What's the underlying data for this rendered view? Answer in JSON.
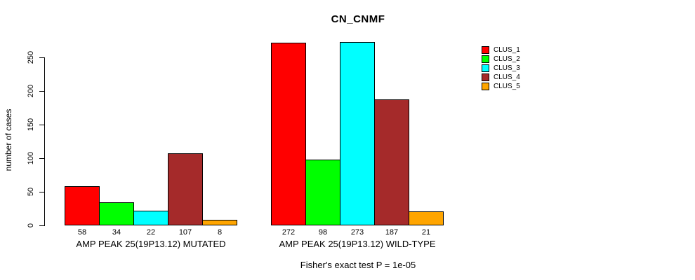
{
  "figure": {
    "title": "CN_CNMF",
    "ylabel": "number of cases",
    "subtitle": "Fisher's exact test P = 1e-05"
  },
  "chart_data": {
    "type": "bar",
    "title": "CN_CNMF",
    "xlabel": "",
    "ylabel": "number of cases",
    "ylim": [
      0,
      275
    ],
    "yticks": [
      0,
      50,
      100,
      150,
      200,
      250
    ],
    "grid": false,
    "legend_position": "top-right",
    "bar_value_labels": true,
    "categories": [
      "AMP PEAK 25(19P13.12) MUTATED",
      "AMP PEAK 25(19P13.12) WILD-TYPE"
    ],
    "series": [
      {
        "name": "CLUS_1",
        "color": "#FF0000",
        "values": [
          58,
          272
        ]
      },
      {
        "name": "CLUS_2",
        "color": "#00FF00",
        "values": [
          34,
          98
        ]
      },
      {
        "name": "CLUS_3",
        "color": "#00FFFF",
        "values": [
          22,
          273
        ]
      },
      {
        "name": "CLUS_4",
        "color": "#A52A2A",
        "values": [
          107,
          187
        ]
      },
      {
        "name": "CLUS_5",
        "color": "#FFA500",
        "values": [
          8,
          21
        ]
      }
    ],
    "annotation": "Fisher's exact test P = 1e-05"
  }
}
